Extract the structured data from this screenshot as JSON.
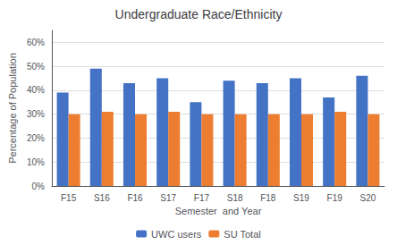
{
  "chart_data": {
    "type": "bar",
    "title": "Undergraduate Race/Ethnicity",
    "xlabel": "Semester  and Year",
    "ylabel": "Percentage of Population",
    "categories": [
      "F15",
      "S16",
      "F16",
      "S17",
      "F17",
      "S18",
      "F18",
      "S19",
      "F19",
      "S20"
    ],
    "series": [
      {
        "name": "UWC users",
        "color": "#4472C4",
        "values": [
          0.39,
          0.49,
          0.43,
          0.45,
          0.35,
          0.44,
          0.43,
          0.45,
          0.37,
          0.46
        ]
      },
      {
        "name": "SU Total",
        "color": "#ED7D31",
        "values": [
          0.3,
          0.31,
          0.3,
          0.31,
          0.3,
          0.3,
          0.3,
          0.3,
          0.31,
          0.3
        ]
      }
    ],
    "ylim": [
      0,
      0.65
    ],
    "yticks": [
      {
        "value": 0.0,
        "label": "0%"
      },
      {
        "value": 0.1,
        "label": "10%"
      },
      {
        "value": 0.2,
        "label": "20%"
      },
      {
        "value": 0.3,
        "label": "30%"
      },
      {
        "value": 0.4,
        "label": "40%"
      },
      {
        "value": 0.5,
        "label": "50%"
      },
      {
        "value": 0.6,
        "label": "60%"
      }
    ],
    "grid": true,
    "legend": "bottom"
  }
}
